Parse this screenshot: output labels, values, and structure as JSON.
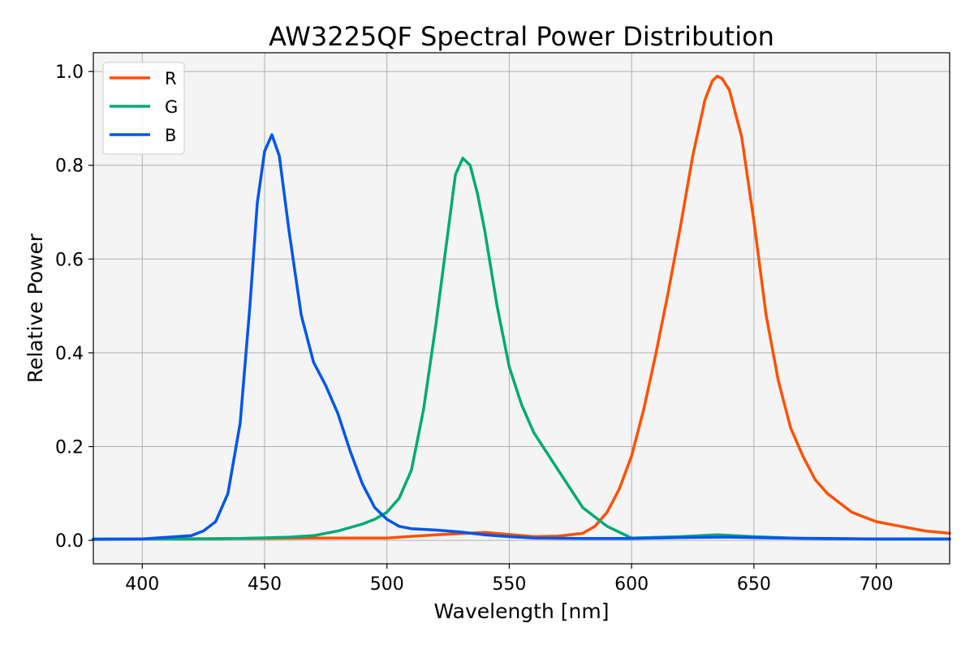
{
  "chart_data": {
    "type": "line",
    "title": "AW3225QF Spectral Power Distribution",
    "xlabel": "Wavelength [nm]",
    "ylabel": "Relative Power",
    "xlim": [
      380,
      730
    ],
    "ylim": [
      -0.05,
      1.04
    ],
    "xticks": [
      400,
      450,
      500,
      550,
      600,
      650,
      700
    ],
    "yticks": [
      0.0,
      0.2,
      0.4,
      0.6,
      0.8,
      1.0
    ],
    "xtick_labels": [
      "400",
      "450",
      "500",
      "550",
      "600",
      "650",
      "700"
    ],
    "ytick_labels": [
      "0.0",
      "0.2",
      "0.4",
      "0.6",
      "0.8",
      "1.0"
    ],
    "grid": true,
    "legend_position": "top-left",
    "background": "#f4f4f4",
    "series": [
      {
        "name": "R",
        "color": "#ff5000",
        "x": [
          380,
          400,
          440,
          470,
          500,
          520,
          540,
          560,
          570,
          580,
          585,
          590,
          595,
          600,
          605,
          610,
          615,
          620,
          625,
          630,
          633,
          635,
          637,
          640,
          645,
          650,
          655,
          660,
          665,
          670,
          675,
          680,
          685,
          690,
          695,
          700,
          710,
          720,
          730
        ],
        "y": [
          0.003,
          0.003,
          0.004,
          0.005,
          0.005,
          0.012,
          0.017,
          0.008,
          0.009,
          0.015,
          0.03,
          0.06,
          0.11,
          0.18,
          0.28,
          0.4,
          0.53,
          0.67,
          0.82,
          0.94,
          0.98,
          0.99,
          0.985,
          0.96,
          0.86,
          0.68,
          0.48,
          0.34,
          0.24,
          0.18,
          0.13,
          0.1,
          0.08,
          0.06,
          0.05,
          0.04,
          0.03,
          0.02,
          0.015
        ]
      },
      {
        "name": "G",
        "color": "#00aa77",
        "x": [
          380,
          420,
          440,
          460,
          470,
          480,
          490,
          495,
          500,
          505,
          510,
          515,
          520,
          525,
          528,
          531,
          534,
          537,
          540,
          545,
          550,
          555,
          560,
          570,
          580,
          590,
          600,
          620,
          635,
          650,
          670,
          700,
          730
        ],
        "y": [
          0.003,
          0.003,
          0.004,
          0.007,
          0.01,
          0.02,
          0.035,
          0.045,
          0.06,
          0.09,
          0.15,
          0.28,
          0.46,
          0.66,
          0.78,
          0.815,
          0.8,
          0.74,
          0.66,
          0.5,
          0.37,
          0.29,
          0.23,
          0.15,
          0.07,
          0.03,
          0.005,
          0.008,
          0.012,
          0.008,
          0.004,
          0.003,
          0.003
        ]
      },
      {
        "name": "B",
        "color": "#0055ee",
        "x": [
          380,
          400,
          420,
          425,
          430,
          435,
          440,
          444,
          447,
          450,
          453,
          456,
          460,
          465,
          470,
          475,
          480,
          485,
          490,
          495,
          500,
          505,
          510,
          520,
          530,
          540,
          550,
          560,
          580,
          600,
          620,
          640,
          660,
          680,
          700,
          730
        ],
        "y": [
          0.002,
          0.003,
          0.01,
          0.02,
          0.04,
          0.1,
          0.25,
          0.5,
          0.72,
          0.83,
          0.865,
          0.82,
          0.66,
          0.48,
          0.38,
          0.33,
          0.27,
          0.19,
          0.12,
          0.07,
          0.045,
          0.03,
          0.025,
          0.022,
          0.018,
          0.012,
          0.008,
          0.005,
          0.004,
          0.004,
          0.006,
          0.007,
          0.005,
          0.004,
          0.003,
          0.003
        ]
      }
    ]
  }
}
